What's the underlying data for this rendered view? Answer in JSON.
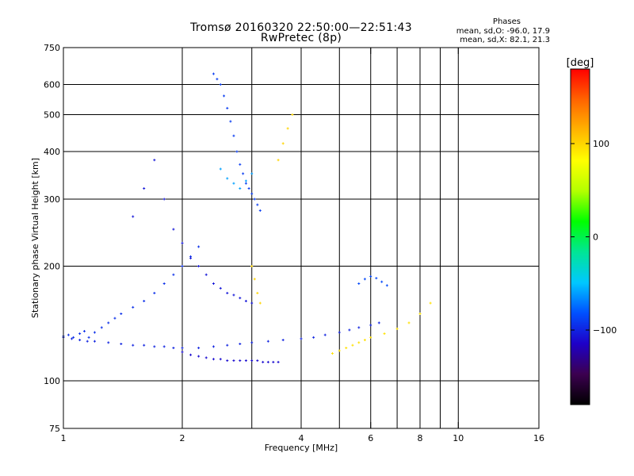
{
  "header": {
    "title_line1": "Tromsø 20160320 22:50:00—22:51:43",
    "title_line2": "RwPretec (8p)",
    "stats_heading": "Phases",
    "stats_line_o": "mean, sd,O: -96.0, 17.9",
    "stats_line_x": "mean, sd,X:  82.1, 21.3"
  },
  "chart_data": {
    "type": "scatter",
    "xlabel": "Frequency [MHz]",
    "ylabel": "Stationary phase Virtual Height [km]",
    "xscale": "log",
    "yscale": "log",
    "xlim": [
      1,
      16
    ],
    "ylim": [
      75,
      750
    ],
    "x_ticks": [
      1,
      2,
      4,
      6,
      8,
      10,
      16
    ],
    "x_tick_labels": [
      "1",
      "2",
      "4",
      "6",
      "8",
      "10",
      "16"
    ],
    "x_grid": [
      2,
      3,
      4,
      5,
      6,
      7,
      8,
      9,
      10
    ],
    "y_ticks": [
      75,
      100,
      200,
      300,
      400,
      500,
      600,
      750
    ],
    "y_tick_labels": [
      "75",
      "100",
      "200",
      "300",
      "400",
      "500",
      "600",
      "750"
    ],
    "y_grid": [
      100,
      200,
      300,
      400,
      500,
      600
    ],
    "grid": true,
    "colorbar": {
      "label": "[deg]",
      "range": [
        -180,
        180
      ],
      "ticks": [
        100,
        0,
        -100
      ],
      "tick_labels": [
        "100",
        "0",
        "−100"
      ],
      "colors": [
        "#000000",
        "#3c0050",
        "#1e00c8",
        "#0050ff",
        "#00c8ff",
        "#00e696",
        "#00ff00",
        "#b4ff00",
        "#ffff00",
        "#ffb400",
        "#ff6400",
        "#ff0000"
      ]
    },
    "series": [
      {
        "x": [
          1.0,
          1.05,
          1.1,
          1.15,
          1.2,
          1.3,
          1.4,
          1.5,
          1.6,
          1.7,
          1.8,
          1.9,
          2.0,
          2.2,
          2.4,
          2.6,
          2.8,
          3.0,
          3.3,
          3.6,
          4.0,
          4.3,
          4.6,
          5.0,
          5.3,
          5.6,
          6.0,
          6.3
        ],
        "y": [
          130,
          129,
          128,
          127,
          127,
          126,
          125,
          124,
          124,
          123,
          123,
          122,
          122,
          122,
          123,
          124,
          125,
          126,
          127,
          128,
          129,
          130,
          132,
          134,
          136,
          138,
          140,
          142
        ],
        "phase": -100
      },
      {
        "x": [
          2.0,
          2.1,
          2.2,
          2.3,
          2.4,
          2.5,
          2.6,
          2.7,
          2.8,
          2.9,
          3.0,
          3.1,
          3.2,
          3.3,
          3.4,
          3.5
        ],
        "y": [
          119,
          117,
          116,
          115,
          114,
          114,
          113,
          113,
          113,
          113,
          113,
          113,
          112,
          112,
          112,
          112
        ],
        "phase": -110
      },
      {
        "x": [
          1.0,
          1.03,
          1.06,
          1.1,
          1.13,
          1.16,
          1.2,
          1.25,
          1.3,
          1.35,
          1.4,
          1.5,
          1.6,
          1.7,
          1.8,
          1.9,
          2.0,
          2.1,
          2.2
        ],
        "y": [
          131,
          132,
          130,
          133,
          135,
          130,
          134,
          138,
          142,
          146,
          150,
          156,
          162,
          170,
          180,
          190,
          200,
          212,
          225
        ],
        "phase": -95
      },
      {
        "x": [
          1.5,
          1.6,
          1.7,
          1.8,
          1.9,
          2.0,
          2.1,
          2.2,
          2.3,
          2.4,
          2.5,
          2.6,
          2.7,
          2.8,
          2.9,
          3.0
        ],
        "y": [
          270,
          320,
          380,
          300,
          250,
          230,
          210,
          200,
          190,
          180,
          175,
          170,
          168,
          165,
          162,
          160
        ],
        "phase": -105
      },
      {
        "x": [
          2.4,
          2.45,
          2.5,
          2.55,
          2.6,
          2.65,
          2.7,
          2.75,
          2.8,
          2.85,
          2.9,
          2.95,
          3.0,
          3.05,
          3.1,
          3.15
        ],
        "y": [
          640,
          620,
          600,
          560,
          520,
          480,
          440,
          400,
          370,
          350,
          330,
          320,
          310,
          300,
          290,
          280
        ],
        "phase": -90
      },
      {
        "x": [
          2.5,
          2.6,
          2.7,
          2.8,
          2.9,
          3.0
        ],
        "y": [
          360,
          340,
          330,
          320,
          335,
          350
        ],
        "phase": -60
      },
      {
        "x": [
          3.0,
          3.05,
          3.1,
          3.15,
          3.5,
          3.6,
          3.7,
          3.8
        ],
        "y": [
          200,
          185,
          170,
          160,
          380,
          420,
          460,
          500
        ],
        "phase": 100
      },
      {
        "x": [
          4.8,
          5.0,
          5.2,
          5.4,
          5.6,
          5.8,
          6.0,
          6.5,
          7.0,
          7.5,
          8.0,
          8.5
        ],
        "y": [
          118,
          120,
          122,
          124,
          126,
          128,
          130,
          133,
          137,
          142,
          150,
          160
        ],
        "phase": 95
      },
      {
        "x": [
          5.6,
          5.8,
          6.0,
          6.2,
          6.4,
          6.6
        ],
        "y": [
          180,
          185,
          188,
          186,
          182,
          178
        ],
        "phase": -85
      }
    ]
  }
}
